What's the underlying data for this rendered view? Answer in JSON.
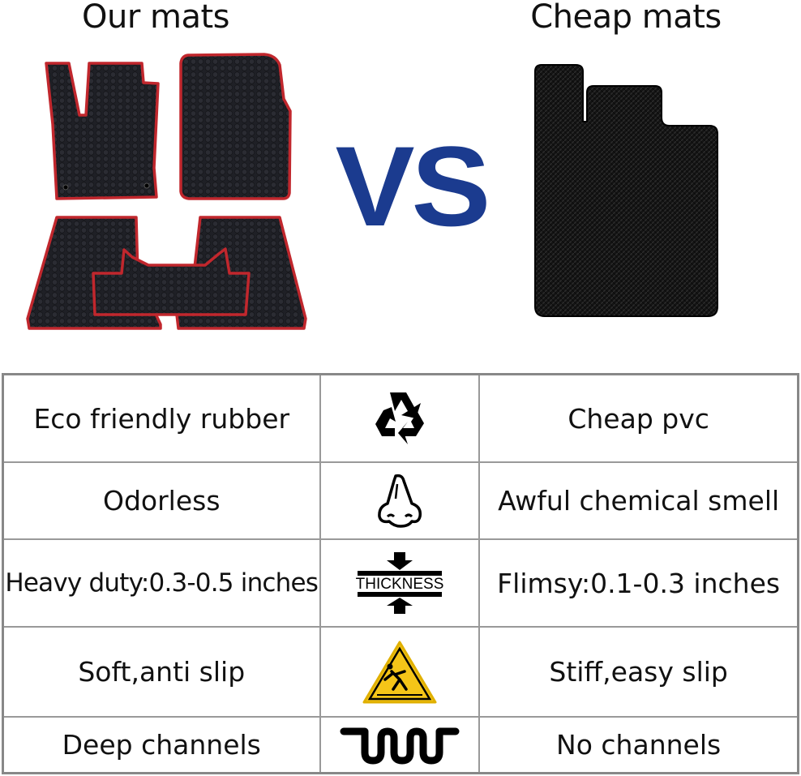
{
  "header": {
    "left_title": "Our mats",
    "vs": "VS",
    "right_title": "Cheap mats"
  },
  "colors": {
    "vs_blue": "#1b3b8f",
    "mat_trim_red": "#c1272d",
    "mat_black": "#1f2026",
    "warning_yellow": "#f5c518"
  },
  "comparison": [
    {
      "ours": "Eco friendly rubber",
      "icon": "recycle-icon",
      "cheap": "Cheap pvc"
    },
    {
      "ours": "Odorless",
      "icon": "nose-icon",
      "cheap": "Awful chemical smell"
    },
    {
      "ours": "Heavy duty:0.3-0.5 inches",
      "icon": "thickness-icon",
      "icon_text": "THICKNESS",
      "cheap": "Flimsy:0.1-0.3 inches"
    },
    {
      "ours": "Soft,anti slip",
      "icon": "slip-warning-icon",
      "cheap": "Stiff,easy slip"
    },
    {
      "ours": "Deep channels",
      "icon": "channels-icon",
      "cheap": "No channels"
    }
  ]
}
